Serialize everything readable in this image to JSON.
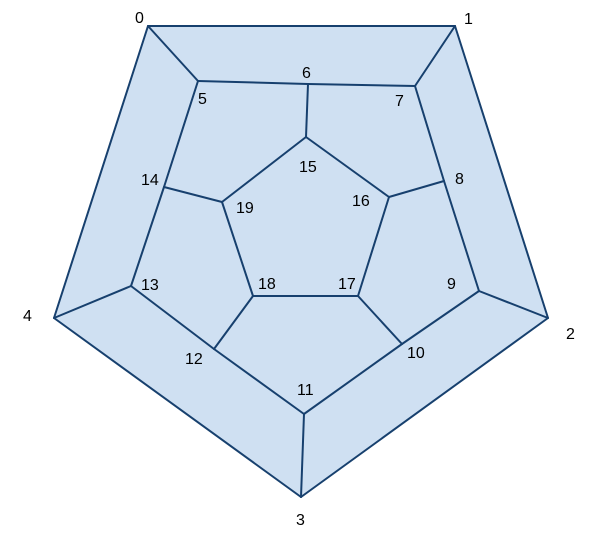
{
  "graph": {
    "vertices": [
      {
        "id": 0,
        "label": "0"
      },
      {
        "id": 1,
        "label": "1"
      },
      {
        "id": 2,
        "label": "2"
      },
      {
        "id": 3,
        "label": "3"
      },
      {
        "id": 4,
        "label": "4"
      },
      {
        "id": 5,
        "label": "5"
      },
      {
        "id": 6,
        "label": "6"
      },
      {
        "id": 7,
        "label": "7"
      },
      {
        "id": 8,
        "label": "8"
      },
      {
        "id": 9,
        "label": "9"
      },
      {
        "id": 10,
        "label": "10"
      },
      {
        "id": 11,
        "label": "11"
      },
      {
        "id": 12,
        "label": "12"
      },
      {
        "id": 13,
        "label": "13"
      },
      {
        "id": 14,
        "label": "14"
      },
      {
        "id": 15,
        "label": "15"
      },
      {
        "id": 16,
        "label": "16"
      },
      {
        "id": 17,
        "label": "17"
      },
      {
        "id": 18,
        "label": "18"
      },
      {
        "id": 19,
        "label": "19"
      }
    ],
    "edges": [
      [
        0,
        1
      ],
      [
        1,
        2
      ],
      [
        2,
        3
      ],
      [
        3,
        4
      ],
      [
        4,
        0
      ],
      [
        0,
        5
      ],
      [
        1,
        7
      ],
      [
        2,
        9
      ],
      [
        3,
        11
      ],
      [
        4,
        13
      ],
      [
        5,
        6
      ],
      [
        6,
        7
      ],
      [
        7,
        8
      ],
      [
        8,
        9
      ],
      [
        9,
        10
      ],
      [
        10,
        11
      ],
      [
        11,
        12
      ],
      [
        12,
        13
      ],
      [
        13,
        14
      ],
      [
        14,
        5
      ],
      [
        6,
        15
      ],
      [
        8,
        16
      ],
      [
        10,
        17
      ],
      [
        12,
        18
      ],
      [
        14,
        19
      ],
      [
        15,
        16
      ],
      [
        16,
        17
      ],
      [
        17,
        18
      ],
      [
        18,
        19
      ],
      [
        19,
        15
      ]
    ]
  },
  "colors": {
    "fill": "#cfe0f2",
    "edge": "#17406e",
    "label": "#000000"
  }
}
